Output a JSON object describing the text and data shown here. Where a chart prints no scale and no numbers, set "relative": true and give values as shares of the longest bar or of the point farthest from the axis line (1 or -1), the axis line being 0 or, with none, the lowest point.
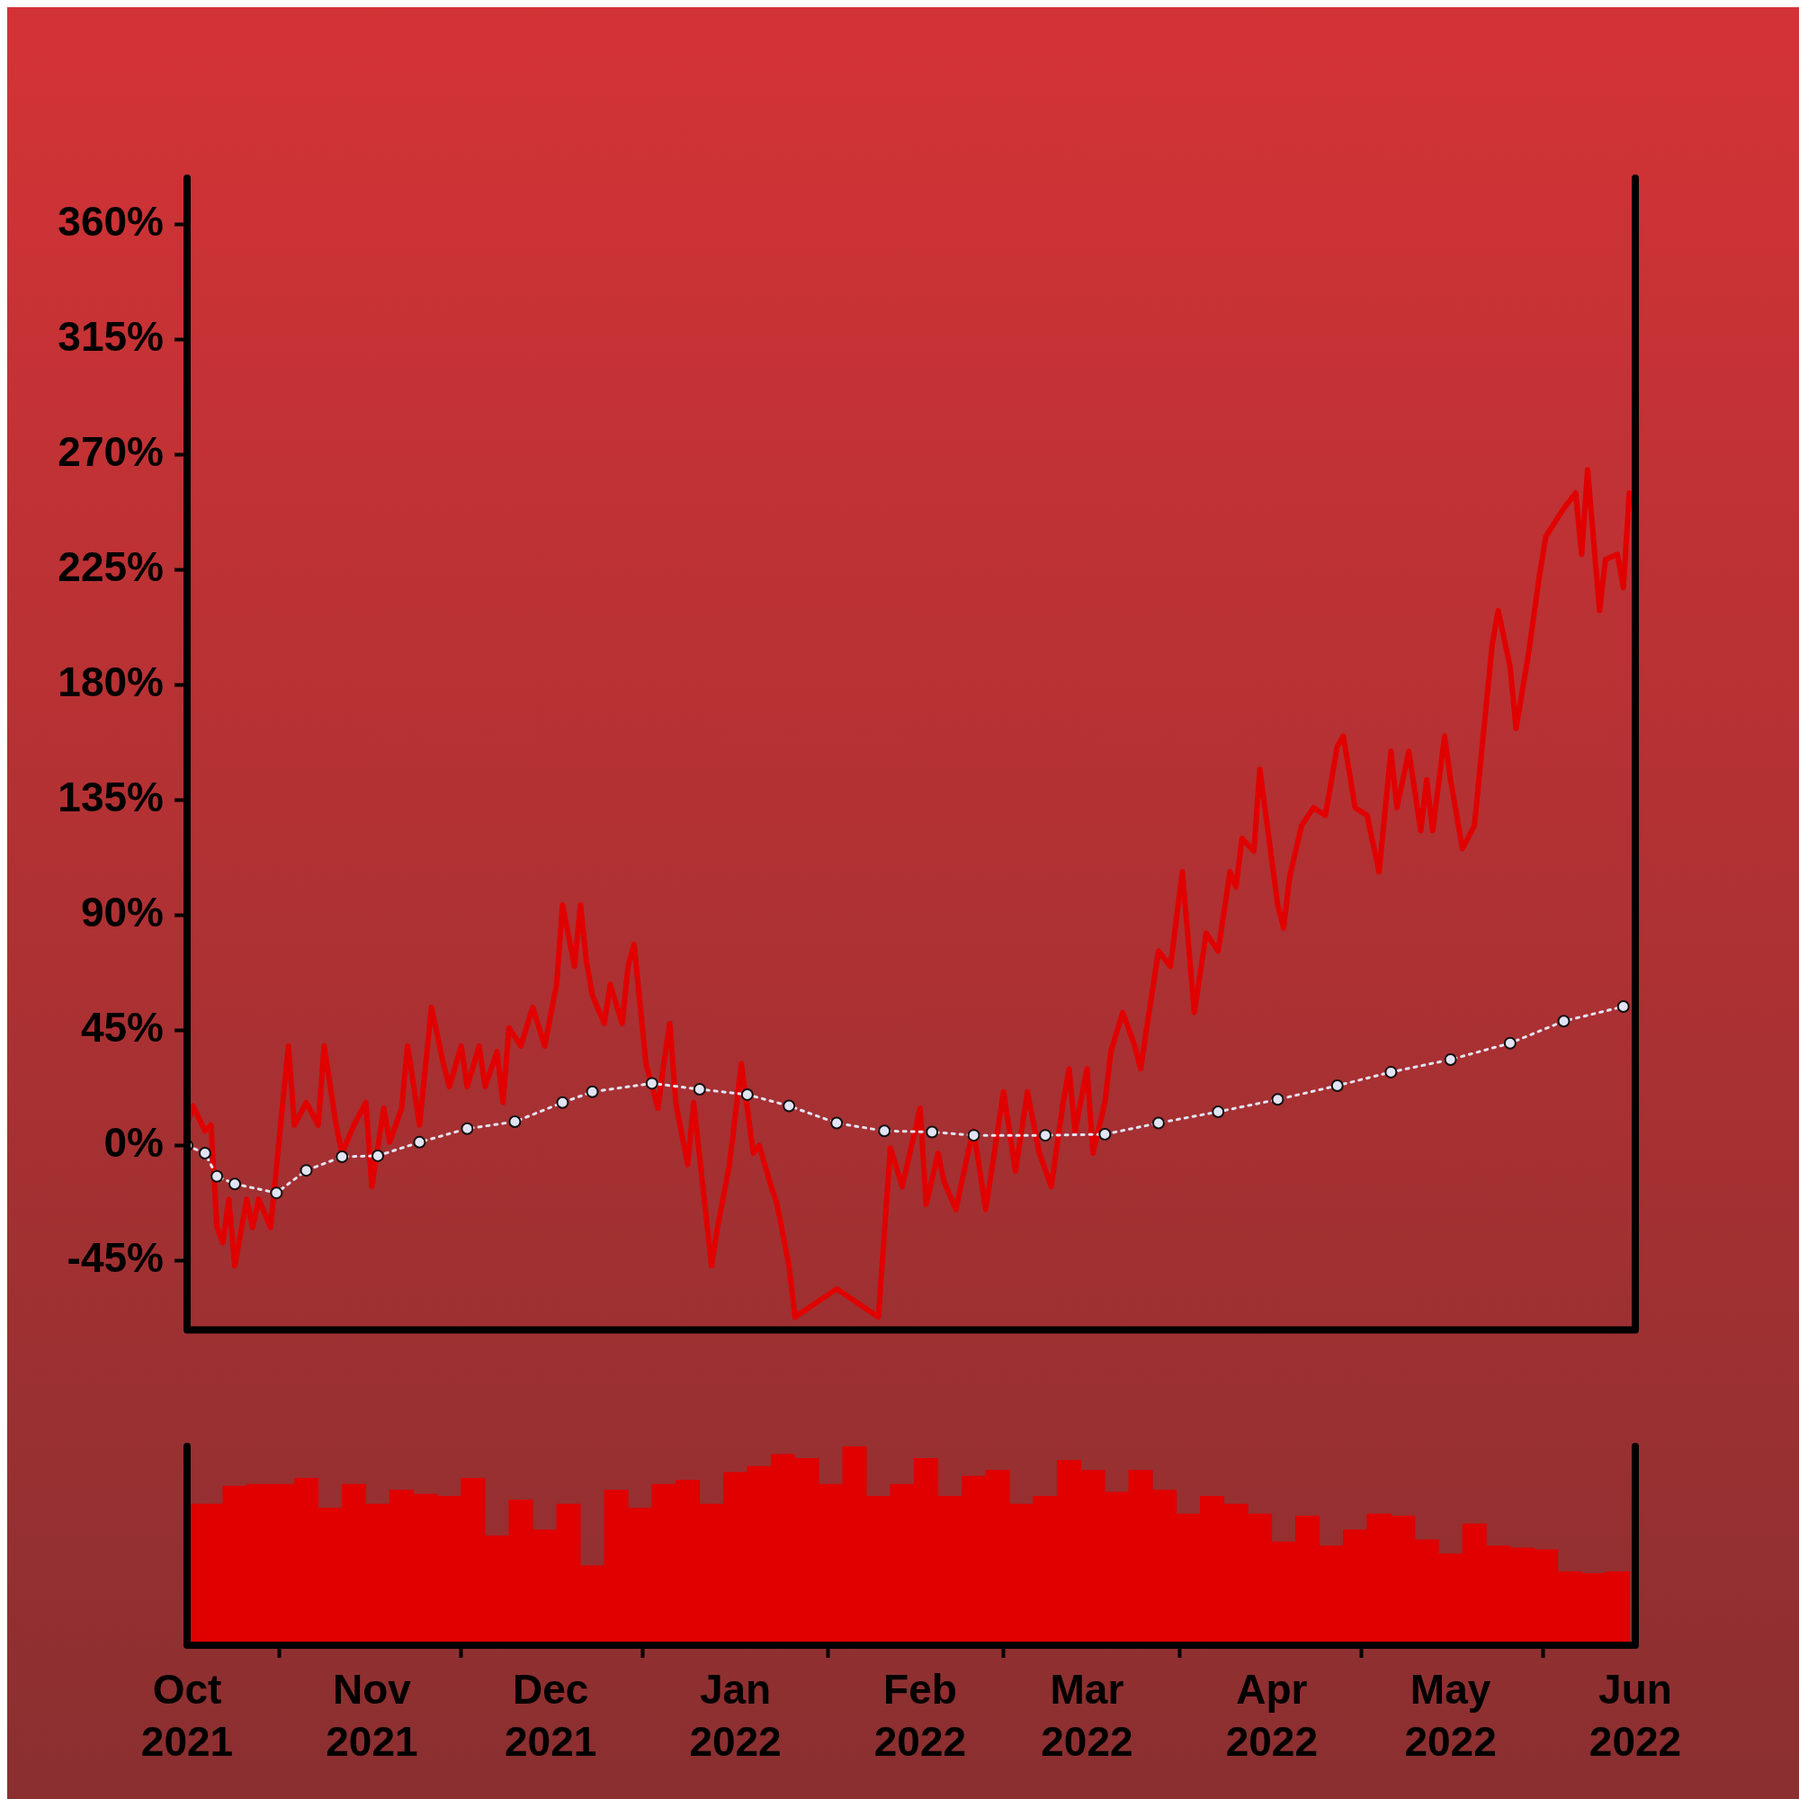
{
  "chart_data": [
    {
      "type": "line",
      "x": [
        "2021-10-01",
        "2021-10-02",
        "2021-10-04",
        "2021-10-05",
        "2021-10-06",
        "2021-10-07",
        "2021-10-08",
        "2021-10-09",
        "2021-10-11",
        "2021-10-12",
        "2021-10-13",
        "2021-10-15",
        "2021-10-18",
        "2021-10-19",
        "2021-10-21",
        "2021-10-23",
        "2021-10-24",
        "2021-10-26",
        "2021-10-27",
        "2021-10-29",
        "2021-10-31",
        "2021-11-01",
        "2021-11-03",
        "2021-11-04",
        "2021-11-06",
        "2021-11-07",
        "2021-11-09",
        "2021-11-11",
        "2021-11-13",
        "2021-11-14",
        "2021-11-16",
        "2021-11-17",
        "2021-11-19",
        "2021-11-20",
        "2021-11-22",
        "2021-11-23",
        "2021-11-24",
        "2021-11-26",
        "2021-11-28",
        "2021-11-30",
        "2021-12-02",
        "2021-12-03",
        "2021-12-05",
        "2021-12-06",
        "2021-12-07",
        "2021-12-08",
        "2021-12-10",
        "2021-12-11",
        "2021-12-13",
        "2021-12-14",
        "2021-12-15",
        "2021-12-17",
        "2021-12-19",
        "2021-12-20",
        "2021-12-21",
        "2021-12-22",
        "2021-12-24",
        "2021-12-25",
        "2021-12-28",
        "2021-12-29",
        "2021-12-31",
        "2022-01-02",
        "2022-01-04",
        "2022-01-05",
        "2022-01-07",
        "2022-01-08",
        "2022-01-10",
        "2022-01-11",
        "2022-01-18",
        "2022-01-25",
        "2022-01-27",
        "2022-01-29",
        "2022-02-01",
        "2022-02-02",
        "2022-02-04",
        "2022-02-05",
        "2022-02-07",
        "2022-02-09",
        "2022-02-10",
        "2022-02-12",
        "2022-02-15",
        "2022-02-17",
        "2022-02-19",
        "2022-02-21",
        "2022-02-23",
        "2022-02-25",
        "2022-02-26",
        "2022-02-27",
        "2022-03-01",
        "2022-03-02",
        "2022-03-04",
        "2022-03-05",
        "2022-03-07",
        "2022-03-09",
        "2022-03-10",
        "2022-03-12",
        "2022-03-13",
        "2022-03-15",
        "2022-03-17",
        "2022-03-19",
        "2022-03-21",
        "2022-03-23",
        "2022-03-25",
        "2022-03-26",
        "2022-03-27",
        "2022-03-29",
        "2022-03-30",
        "2022-04-02",
        "2022-04-03",
        "2022-04-04",
        "2022-04-06",
        "2022-04-08",
        "2022-04-10",
        "2022-04-12",
        "2022-04-13",
        "2022-04-15",
        "2022-04-17",
        "2022-04-19",
        "2022-04-21",
        "2022-04-22",
        "2022-04-24",
        "2022-04-26",
        "2022-04-27",
        "2022-04-28",
        "2022-04-30",
        "2022-05-01",
        "2022-05-03",
        "2022-05-05",
        "2022-05-08",
        "2022-05-09",
        "2022-05-11",
        "2022-05-12",
        "2022-05-14",
        "2022-05-16",
        "2022-05-17",
        "2022-05-20",
        "2022-05-22",
        "2022-05-23",
        "2022-05-24",
        "2022-05-26",
        "2022-05-27",
        "2022-05-29",
        "2022-05-30",
        "2022-05-31"
      ],
      "series": [
        {
          "color": "#e00000",
          "marker": "none",
          "line_style": "solid",
          "values": [
            8,
            15.5,
            5.7,
            8,
            -31.8,
            -38,
            -21,
            -47,
            -21,
            -32,
            -21,
            -32,
            38.9,
            8,
            16.8,
            8,
            38.9,
            8,
            -3,
            8,
            16.8,
            -16,
            14.6,
            1.3,
            14.6,
            38.9,
            8,
            54,
            32,
            23,
            38.9,
            23,
            38.9,
            23,
            36.7,
            16.8,
            46,
            38.9,
            54,
            38.9,
            63,
            94,
            70,
            94,
            72,
            58.7,
            47.7,
            63,
            47.7,
            70,
            78.6,
            32,
            14.6,
            32,
            47.7,
            16.8,
            -7.5,
            16.8,
            -47,
            -32,
            -7.5,
            32,
            -3,
            0,
            -16,
            -23,
            -47,
            -67,
            -56,
            -67,
            -1,
            -16,
            14.6,
            -23,
            -3,
            -14,
            -25,
            -3,
            5.7,
            -25,
            21,
            -10,
            21,
            -3,
            -16,
            16.8,
            30,
            5.7,
            30,
            -3,
            16.8,
            36.7,
            52,
            38.9,
            30,
            61,
            76,
            70,
            107,
            52,
            83,
            76,
            107,
            101,
            120,
            115,
            147,
            94,
            85,
            105,
            125,
            132,
            129,
            156,
            160,
            132,
            129,
            107,
            154,
            132,
            154,
            123,
            143,
            123,
            160,
            143,
            116,
            125,
            196,
            209,
            187,
            163,
            191,
            224,
            238,
            249,
            255,
            231,
            264,
            209,
            229,
            231,
            218,
            255
          ]
        },
        {
          "color": "#e2e4f4",
          "marker": "circle",
          "line_style": "dotted",
          "x": [
            "2021-10-01",
            "2021-10-04",
            "2021-10-06",
            "2021-10-09",
            "2021-10-16",
            "2021-10-21",
            "2021-10-27",
            "2021-11-02",
            "2021-11-09",
            "2021-11-17",
            "2021-11-25",
            "2021-12-03",
            "2021-12-08",
            "2021-12-18",
            "2021-12-26",
            "2022-01-03",
            "2022-01-10",
            "2022-01-18",
            "2022-01-26",
            "2022-02-03",
            "2022-02-10",
            "2022-02-22",
            "2022-03-04",
            "2022-03-13",
            "2022-03-23",
            "2022-04-02",
            "2022-04-12",
            "2022-04-21",
            "2022-05-01",
            "2022-05-11",
            "2022-05-20",
            "2022-05-30"
          ],
          "values": [
            0,
            -3,
            -12,
            -15,
            -18.5,
            -9.7,
            -4.4,
            -4,
            1.3,
            6.6,
            9.3,
            16.8,
            21,
            24.3,
            22,
            19.9,
            15.5,
            8.8,
            5.7,
            5.3,
            4,
            4,
            4.4,
            8.8,
            13.2,
            18,
            23.4,
            28.7,
            33.6,
            40,
            48.6,
            54.3
          ]
        }
      ],
      "xlim": [
        "2021-10-01",
        "2022-06-01"
      ],
      "ylim": [
        -72,
        378
      ],
      "yticks": [
        {
          "value": -45,
          "label": "-45%"
        },
        {
          "value": 0,
          "label": "0%"
        },
        {
          "value": 45,
          "label": "45%"
        },
        {
          "value": 90,
          "label": "90%"
        },
        {
          "value": 135,
          "label": "135%"
        },
        {
          "value": 180,
          "label": "180%"
        },
        {
          "value": 225,
          "label": "225%"
        },
        {
          "value": 270,
          "label": "270%"
        },
        {
          "value": 315,
          "label": "315%"
        },
        {
          "value": 360,
          "label": "360%"
        }
      ],
      "tick_labels": "y",
      "grid": false,
      "legend": false
    },
    {
      "type": "bar",
      "relative": true,
      "color": "#e00000",
      "x": [
        "2021-10-01",
        "2021-10-05",
        "2021-10-09",
        "2021-10-13",
        "2021-10-17",
        "2021-10-21",
        "2021-10-25",
        "2021-10-29",
        "2021-11-02",
        "2021-11-06",
        "2021-11-10",
        "2021-11-14",
        "2021-11-18",
        "2021-11-22",
        "2021-11-26",
        "2021-11-30",
        "2021-12-04",
        "2021-12-08",
        "2021-12-12",
        "2021-12-16",
        "2021-12-20",
        "2021-12-24",
        "2021-12-28",
        "2022-01-01",
        "2022-01-05",
        "2022-01-09",
        "2022-01-13",
        "2022-01-17",
        "2022-01-21",
        "2022-01-25",
        "2022-01-29",
        "2022-02-02",
        "2022-02-06",
        "2022-02-10",
        "2022-02-14",
        "2022-02-18",
        "2022-02-22",
        "2022-02-26",
        "2022-03-02",
        "2022-03-06",
        "2022-03-10",
        "2022-03-14",
        "2022-03-18",
        "2022-03-22",
        "2022-03-26",
        "2022-03-30",
        "2022-04-03",
        "2022-04-07",
        "2022-04-11",
        "2022-04-15",
        "2022-04-19",
        "2022-04-23",
        "2022-04-27",
        "2022-05-01",
        "2022-05-05",
        "2022-05-09",
        "2022-05-13",
        "2022-05-17",
        "2022-05-21",
        "2022-05-25",
        "2022-05-29"
      ],
      "values": [
        0.71,
        0.71,
        0.8,
        0.81,
        0.81,
        0.84,
        0.69,
        0.81,
        0.71,
        0.78,
        0.76,
        0.75,
        0.84,
        0.55,
        0.73,
        0.58,
        0.71,
        0.4,
        0.78,
        0.69,
        0.81,
        0.83,
        0.71,
        0.87,
        0.9,
        0.96,
        0.94,
        0.81,
        1,
        0.75,
        0.81,
        0.94,
        0.75,
        0.85,
        0.88,
        0.71,
        0.75,
        0.93,
        0.88,
        0.77,
        0.88,
        0.78,
        0.66,
        0.75,
        0.71,
        0.66,
        0.52,
        0.65,
        0.5,
        0.58,
        0.66,
        0.65,
        0.53,
        0.46,
        0.61,
        0.5,
        0.49,
        0.48,
        0.37,
        0.36,
        0.37
      ],
      "xlim": [
        "2021-10-01",
        "2022-06-01"
      ],
      "xticks": [
        {
          "value": "2021-10-01",
          "label": "Oct 2021"
        },
        {
          "value": "2021-11-01",
          "label": "Nov 2021"
        },
        {
          "value": "2021-12-01",
          "label": "Dec 2021"
        },
        {
          "value": "2022-01-01",
          "label": "Jan 2022"
        },
        {
          "value": "2022-02-01",
          "label": "Feb 2022"
        },
        {
          "value": "2022-03-01",
          "label": "Mar 2022"
        },
        {
          "value": "2022-04-01",
          "label": "Apr 2022"
        },
        {
          "value": "2022-05-01",
          "label": "May 2022"
        },
        {
          "value": "2022-06-01",
          "label": "Jun 2022"
        }
      ],
      "tick_labels": "x",
      "grid": false,
      "legend": false
    }
  ]
}
